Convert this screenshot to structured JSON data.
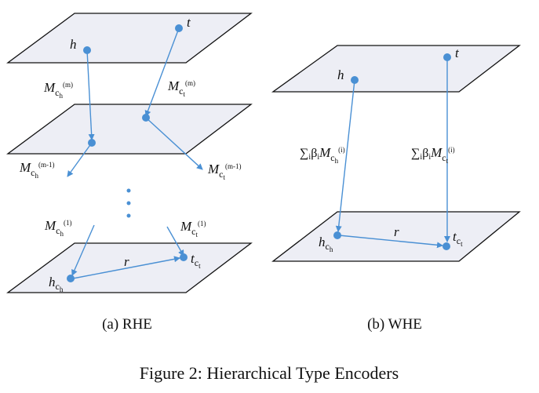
{
  "rhe": {
    "nodes": {
      "h": "h",
      "t": "t",
      "hc": "h",
      "tc": "t",
      "hc_sub": "c",
      "tc_sub": "c",
      "hc_subsub": "h",
      "tc_subsub": "t"
    },
    "edges": {
      "mh_m": {
        "main": "M",
        "sub": "c",
        "subsub": "h",
        "sup": "(m)"
      },
      "mt_m": {
        "main": "M",
        "sub": "c",
        "subsub": "t",
        "sup": "(m)"
      },
      "mh_m1": {
        "main": "M",
        "sub": "c",
        "subsub": "h",
        "sup": "(m-1)"
      },
      "mt_m1": {
        "main": "M",
        "sub": "c",
        "subsub": "t",
        "sup": "(m-1)"
      },
      "mh_1": {
        "main": "M",
        "sub": "c",
        "subsub": "h",
        "sup": "(1)"
      },
      "mt_1": {
        "main": "M",
        "sub": "c",
        "subsub": "t",
        "sup": "(1)"
      },
      "r": "r"
    }
  },
  "whe": {
    "nodes": {
      "h": "h",
      "t": "t",
      "hc": "h",
      "tc": "t",
      "hc_sub": "c",
      "tc_sub": "c",
      "hc_subsub": "h",
      "tc_subsub": "t"
    },
    "edges": {
      "sum_h": {
        "sigma": "∑",
        "i": "i",
        "beta": "β",
        "bi": "i",
        "main": "M",
        "sub": "c",
        "subsub": "h",
        "sup": "(i)"
      },
      "sum_t": {
        "sigma": "∑",
        "i": "i",
        "beta": "β",
        "bi": "i",
        "main": "M",
        "sub": "c",
        "subsub": "t",
        "sup": "(i)"
      },
      "r": "r"
    }
  },
  "captions": {
    "a": "(a)  RHE",
    "b": "(b)  WHE",
    "figure": "Figure 2: Hierarchical Type Encoders"
  },
  "colors": {
    "arrow": "#4a90d4",
    "plane": "#edeef5"
  }
}
